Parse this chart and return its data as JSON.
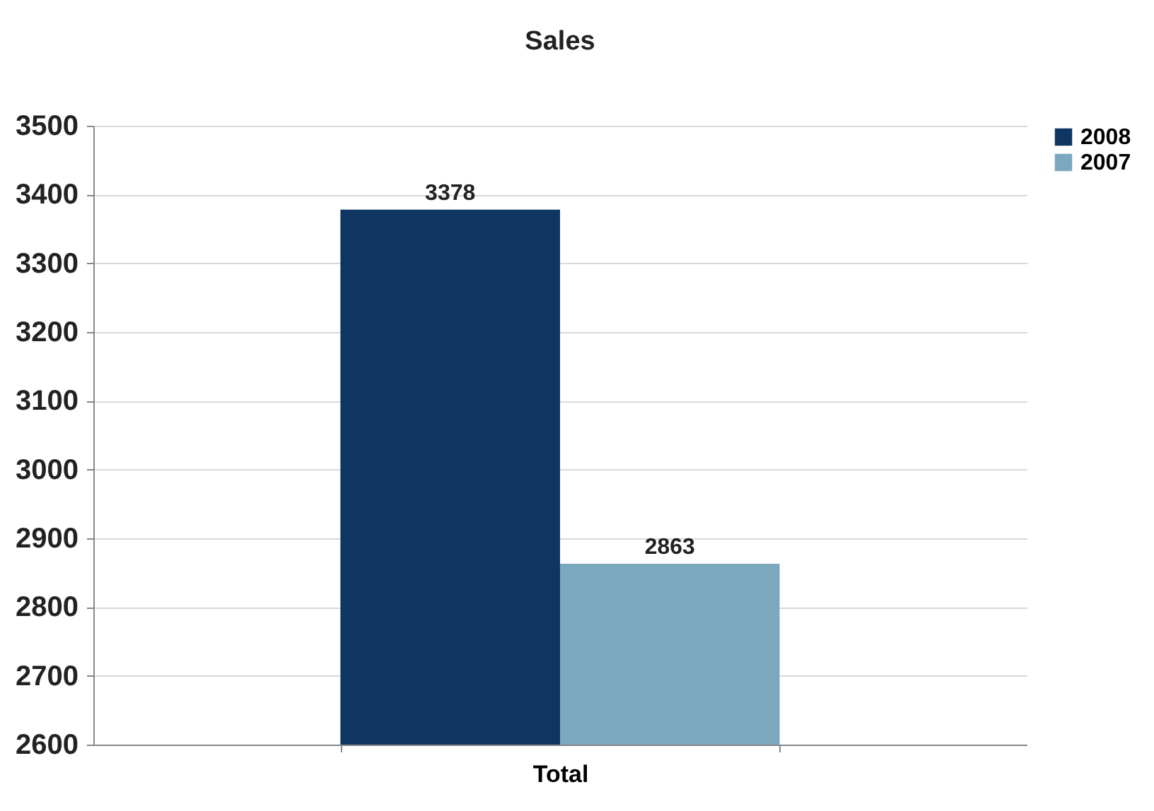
{
  "chart_data": {
    "type": "bar",
    "title": "Sales",
    "categories": [
      "Total"
    ],
    "series": [
      {
        "name": "2008",
        "color": "#0f3562",
        "values": [
          3378
        ]
      },
      {
        "name": "2007",
        "color": "#7ba7bf",
        "values": [
          2863
        ]
      }
    ],
    "ylim": [
      2600,
      3500
    ],
    "yticks": [
      2600,
      2700,
      2800,
      2900,
      3000,
      3100,
      3200,
      3300,
      3400,
      3500
    ],
    "grid": "y",
    "legend": "right",
    "data_labels": true
  }
}
